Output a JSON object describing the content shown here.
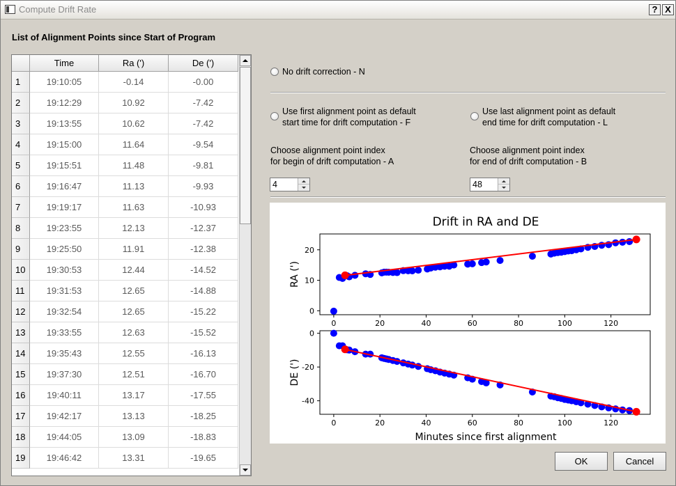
{
  "window": {
    "title": "Compute Drift Rate",
    "help_label": "?",
    "close_label": "X"
  },
  "list": {
    "heading": "List of Alignment Points since Start of Program",
    "columns": [
      "Time",
      "Ra (')",
      "De (')"
    ],
    "rows": [
      {
        "n": "1",
        "time": "19:10:05",
        "ra": "-0.14",
        "de": "-0.00"
      },
      {
        "n": "2",
        "time": "19:12:29",
        "ra": "10.92",
        "de": "-7.42"
      },
      {
        "n": "3",
        "time": "19:13:55",
        "ra": "10.62",
        "de": "-7.42"
      },
      {
        "n": "4",
        "time": "19:15:00",
        "ra": "11.64",
        "de": "-9.54"
      },
      {
        "n": "5",
        "time": "19:15:51",
        "ra": "11.48",
        "de": "-9.81"
      },
      {
        "n": "6",
        "time": "19:16:47",
        "ra": "11.13",
        "de": "-9.93"
      },
      {
        "n": "7",
        "time": "19:19:17",
        "ra": "11.63",
        "de": "-10.93"
      },
      {
        "n": "8",
        "time": "19:23:55",
        "ra": "12.13",
        "de": "-12.37"
      },
      {
        "n": "9",
        "time": "19:25:50",
        "ra": "11.91",
        "de": "-12.38"
      },
      {
        "n": "10",
        "time": "19:30:53",
        "ra": "12.44",
        "de": "-14.52"
      },
      {
        "n": "11",
        "time": "19:31:53",
        "ra": "12.65",
        "de": "-14.88"
      },
      {
        "n": "12",
        "time": "19:32:54",
        "ra": "12.65",
        "de": "-15.22"
      },
      {
        "n": "13",
        "time": "19:33:55",
        "ra": "12.63",
        "de": "-15.52"
      },
      {
        "n": "14",
        "time": "19:35:43",
        "ra": "12.55",
        "de": "-16.13"
      },
      {
        "n": "15",
        "time": "19:37:30",
        "ra": "12.51",
        "de": "-16.70"
      },
      {
        "n": "16",
        "time": "19:40:11",
        "ra": "13.17",
        "de": "-17.55"
      },
      {
        "n": "17",
        "time": "19:42:17",
        "ra": "13.13",
        "de": "-18.25"
      },
      {
        "n": "18",
        "time": "19:44:05",
        "ra": "13.09",
        "de": "-18.83"
      },
      {
        "n": "19",
        "time": "19:46:42",
        "ra": "13.31",
        "de": "-19.65"
      }
    ]
  },
  "options": {
    "no_drift": "No drift correction - N",
    "first_point_line1": "Use first alignment point as default",
    "first_point_line2": "start time for drift computation - F",
    "last_point_line1": "Use last alignment point as default",
    "last_point_line2": "end time for drift computation - L",
    "begin_index_line1": "Choose alignment point index",
    "begin_index_line2": "for begin of drift computation - A",
    "end_index_line1": "Choose alignment point index",
    "end_index_line2": "for end of drift computation - B",
    "begin_index_value": "4",
    "end_index_value": "48"
  },
  "buttons": {
    "ok": "OK",
    "cancel": "Cancel"
  },
  "colors": {
    "points": "#0000ff",
    "selected_points": "#ff0000",
    "fit_line": "#ff0000"
  },
  "chart_data": {
    "title": "Drift in RA and DE",
    "xlabel": "Minutes since first alignment",
    "x_ticks": [
      0,
      20,
      40,
      60,
      80,
      100,
      120
    ],
    "xlim": [
      -6,
      137
    ],
    "ra": {
      "type": "scatter",
      "ylabel": "RA (')",
      "ylim": [
        -1.3,
        25.2
      ],
      "y_ticks": [
        0,
        10,
        20
      ],
      "x": [
        0,
        2.4,
        3.8,
        4.9,
        5.8,
        6.7,
        9.2,
        13.8,
        15.8,
        20.8,
        21.8,
        22.8,
        23.8,
        25.6,
        27.4,
        30.1,
        32.2,
        34.0,
        36.6,
        40.5,
        42.0,
        44.0,
        46.0,
        48.0,
        50.0,
        52.0,
        58.0,
        60.0,
        64.0,
        66.0,
        72.0,
        86.0,
        94.0,
        95.5,
        97.0,
        98.5,
        100.0,
        101.5,
        103.0,
        105.0,
        107.0,
        110.0,
        113.0,
        116.0,
        119.0,
        122.0,
        125.0,
        128.0,
        131.0
      ],
      "y": [
        -0.14,
        10.92,
        10.62,
        11.64,
        11.48,
        11.13,
        11.63,
        12.13,
        11.91,
        12.44,
        12.65,
        12.65,
        12.63,
        12.55,
        12.51,
        13.17,
        13.13,
        13.09,
        13.31,
        13.7,
        14.0,
        14.3,
        14.4,
        14.6,
        14.6,
        15.0,
        15.3,
        15.4,
        15.8,
        16.0,
        16.5,
        17.9,
        18.6,
        18.9,
        19.1,
        19.2,
        19.4,
        19.6,
        19.7,
        20.0,
        20.3,
        20.8,
        21.1,
        21.5,
        21.7,
        22.3,
        22.5,
        22.7,
        23.4
      ],
      "fit": {
        "x": [
          4.9,
          131.0
        ],
        "y": [
          11.6,
          23.4
        ]
      }
    },
    "de": {
      "type": "scatter",
      "ylabel": "DE (')",
      "ylim": [
        -48,
        1.5
      ],
      "y_ticks": [
        0,
        -20,
        -40
      ],
      "x": [
        0,
        2.4,
        3.8,
        4.9,
        5.8,
        6.7,
        9.2,
        13.8,
        15.8,
        20.8,
        21.8,
        22.8,
        23.8,
        25.6,
        27.4,
        30.1,
        32.2,
        34.0,
        36.6,
        40.5,
        42.0,
        44.0,
        46.0,
        48.0,
        50.0,
        52.0,
        58.0,
        60.0,
        64.0,
        66.0,
        72.0,
        86.0,
        94.0,
        95.5,
        97.0,
        98.5,
        100.0,
        101.5,
        103.0,
        105.0,
        107.0,
        110.0,
        113.0,
        116.0,
        119.0,
        122.0,
        125.0,
        128.0,
        131.0
      ],
      "y": [
        0,
        -7.42,
        -7.42,
        -9.54,
        -9.81,
        -9.93,
        -10.93,
        -12.37,
        -12.38,
        -14.52,
        -14.88,
        -15.22,
        -15.52,
        -16.13,
        -16.7,
        -17.55,
        -18.25,
        -18.83,
        -19.65,
        -21.0,
        -21.6,
        -22.2,
        -23.0,
        -23.6,
        -24.2,
        -24.8,
        -26.4,
        -27.2,
        -28.6,
        -29.4,
        -30.6,
        -34.8,
        -37.2,
        -37.6,
        -38.2,
        -38.6,
        -39.2,
        -39.6,
        -40.0,
        -40.6,
        -41.2,
        -42.0,
        -42.8,
        -43.6,
        -44.2,
        -44.8,
        -45.4,
        -45.8,
        -46.5
      ],
      "fit": {
        "x": [
          4.9,
          131.0
        ],
        "y": [
          -9.6,
          -46.5
        ]
      }
    },
    "highlight_indices": [
      3,
      48
    ]
  }
}
